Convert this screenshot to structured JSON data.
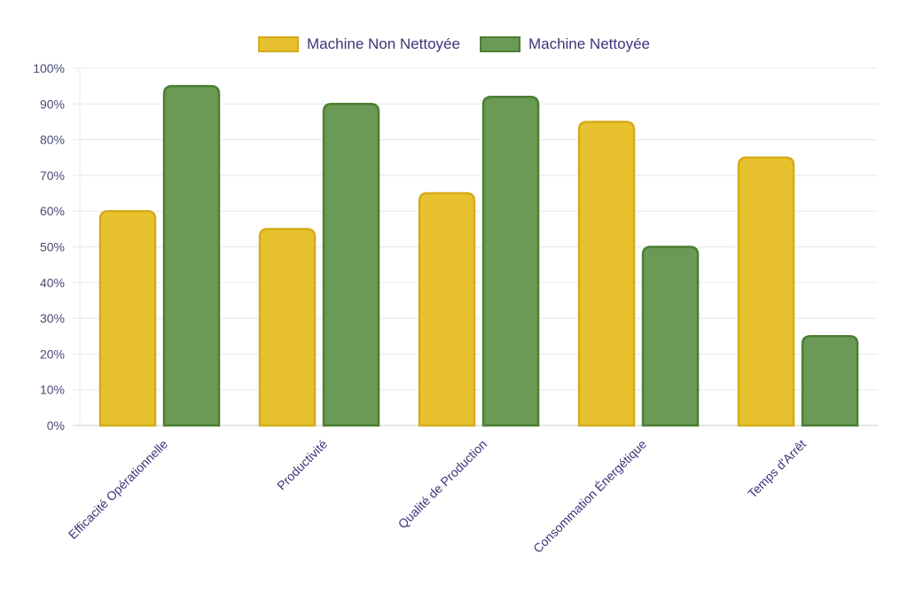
{
  "legend": [
    {
      "label": "Machine Non Nettoyée",
      "fill": "#e8c22e",
      "stroke": "#d4ac1a"
    },
    {
      "label": "Machine Nettoyée",
      "fill": "#6a9a55",
      "stroke": "#4b7f34"
    }
  ],
  "colors": {
    "axis_text": "#4a4a7a",
    "category_text": "#3b3578",
    "grid": "#e8e8ee",
    "axis_line": "#cccccc"
  },
  "chart_data": {
    "type": "bar",
    "title": "",
    "xlabel": "",
    "ylabel": "",
    "categories": [
      "Efficacité Opérationnelle",
      "Productivité",
      "Qualité de Production",
      "Consommation Énergétique",
      "Temps d'Arrêt"
    ],
    "series": [
      {
        "name": "Machine Non Nettoyée",
        "values": [
          60,
          55,
          65,
          85,
          75
        ]
      },
      {
        "name": "Machine Nettoyée",
        "values": [
          95,
          90,
          92,
          50,
          25
        ]
      }
    ],
    "ylim": [
      0,
      100
    ],
    "yticks": [
      "0%",
      "10%",
      "20%",
      "30%",
      "40%",
      "50%",
      "60%",
      "70%",
      "80%",
      "90%",
      "100%"
    ],
    "grid": true,
    "legend_position": "top"
  }
}
